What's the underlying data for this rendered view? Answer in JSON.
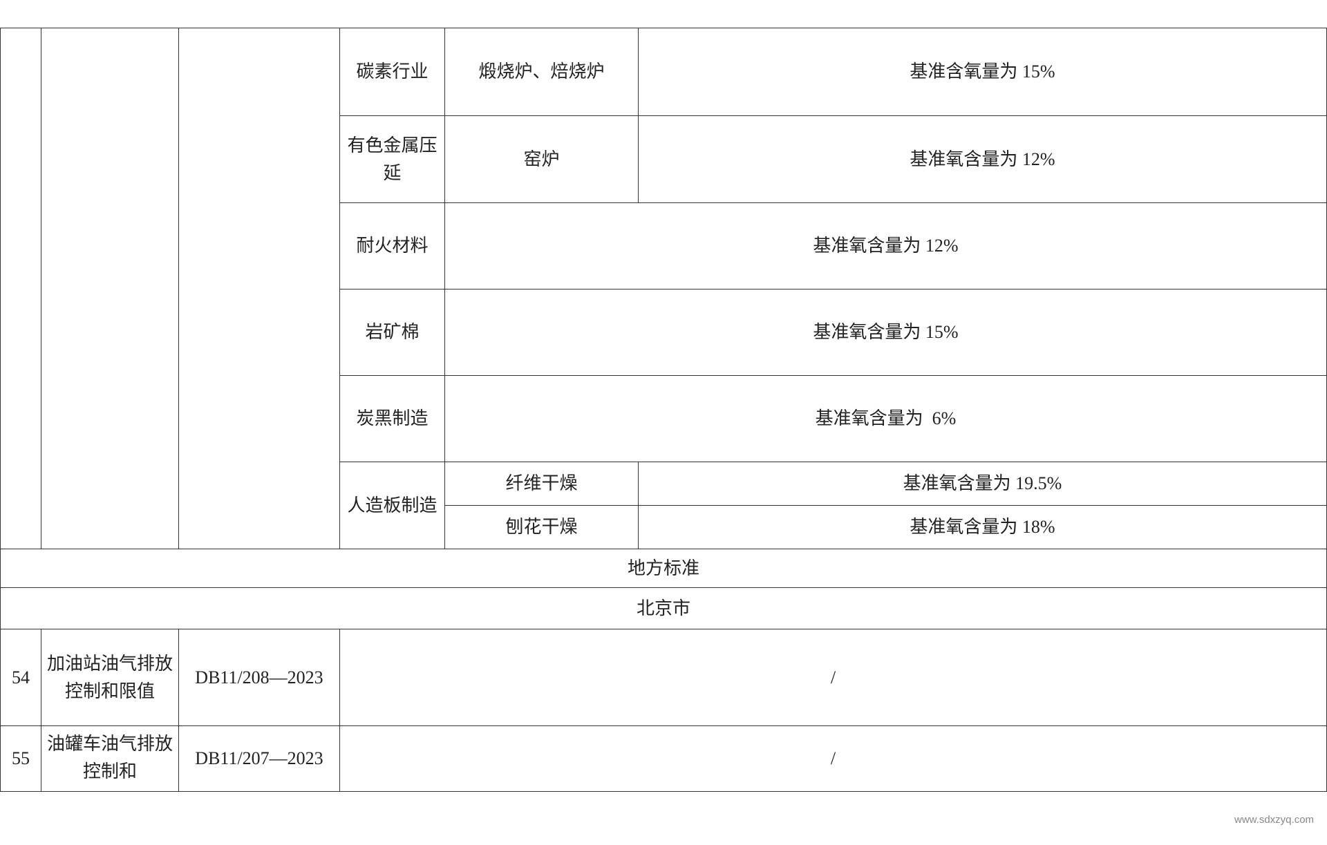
{
  "rows_top": [
    {
      "industry": "碳素行业",
      "equipment": "煅烧炉、焙烧炉",
      "requirement": "基准含氧量为 15%"
    },
    {
      "industry": "有色金属压延",
      "equipment": "窑炉",
      "requirement": "基准氧含量为 12%"
    },
    {
      "industry": "耐火材料",
      "requirement": "基准氧含量为 12%"
    },
    {
      "industry": "岩矿棉",
      "requirement": "基准氧含量为 15%"
    },
    {
      "industry": "炭黑制造",
      "requirement": "基准氧含量为  6%"
    },
    {
      "industry": "人造板制造",
      "sub": [
        {
          "equipment": "纤维干燥",
          "requirement": "基准氧含量为 19.5%"
        },
        {
          "equipment": "刨花干燥",
          "requirement": "基准氧含量为 18%"
        }
      ]
    }
  ],
  "section_local": "地方标准",
  "section_region": "北京市",
  "standards": [
    {
      "no": "54",
      "name": "加油站油气排放控制和限值",
      "code": "DB11/208—2023",
      "note": "/"
    },
    {
      "no": "55",
      "name": "油罐车油气排放控制和",
      "code": "DB11/207—2023",
      "note": "/"
    }
  ],
  "watermark": "www.sdxzyq.com"
}
